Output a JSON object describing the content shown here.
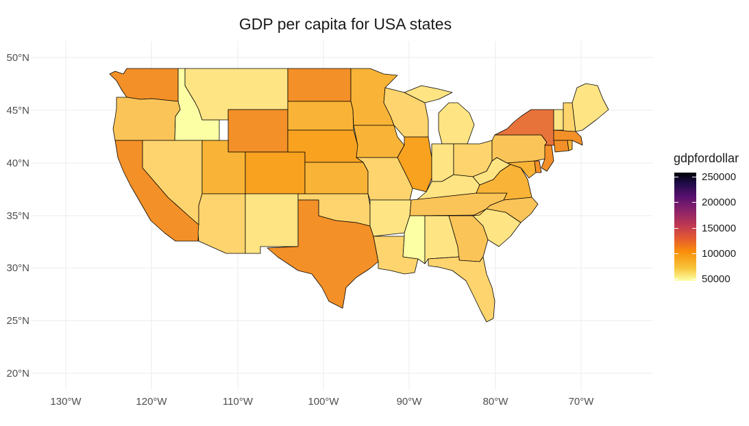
{
  "title": "GDP per capita for USA states",
  "map": {
    "projection": "longitude-latitude",
    "lat_ticks": [
      "50°N",
      "45°N",
      "40°N",
      "35°N",
      "30°N",
      "25°N",
      "20°N"
    ],
    "lon_ticks": [
      "130°W",
      "120°W",
      "110°W",
      "100°W",
      "90°W",
      "80°W",
      "70°W"
    ],
    "fill_variable": "gdpfordollar",
    "colors": {
      "water": "#ffffff",
      "border": "#000000",
      "grid": "#ebebeb",
      "very_low": "#fcffa4",
      "low": "#ffe484",
      "mid_low": "#fdd46d",
      "mid": "#fbc458",
      "mid_high": "#f9b437",
      "high": "#f8a220",
      "very_high": "#f39028",
      "top": "#e8733a"
    },
    "regions": [
      {
        "name": "Washington",
        "color_key": "very_high"
      },
      {
        "name": "Oregon",
        "color_key": "mid"
      },
      {
        "name": "California",
        "color_key": "very_high"
      },
      {
        "name": "Idaho",
        "color_key": "very_low"
      },
      {
        "name": "Nevada",
        "color_key": "mid_low"
      },
      {
        "name": "Montana",
        "color_key": "low"
      },
      {
        "name": "Wyoming",
        "color_key": "very_high"
      },
      {
        "name": "Utah",
        "color_key": "mid_high"
      },
      {
        "name": "Arizona",
        "color_key": "mid_low"
      },
      {
        "name": "Colorado",
        "color_key": "high"
      },
      {
        "name": "New Mexico",
        "color_key": "low"
      },
      {
        "name": "North Dakota",
        "color_key": "very_high"
      },
      {
        "name": "South Dakota",
        "color_key": "mid_high"
      },
      {
        "name": "Nebraska",
        "color_key": "high"
      },
      {
        "name": "Kansas",
        "color_key": "mid_high"
      },
      {
        "name": "Oklahoma",
        "color_key": "mid_low"
      },
      {
        "name": "Texas",
        "color_key": "very_high"
      },
      {
        "name": "Minnesota",
        "color_key": "mid_high"
      },
      {
        "name": "Iowa",
        "color_key": "mid_high"
      },
      {
        "name": "Missouri",
        "color_key": "mid_low"
      },
      {
        "name": "Arkansas",
        "color_key": "low"
      },
      {
        "name": "Louisiana",
        "color_key": "mid_low"
      },
      {
        "name": "Wisconsin",
        "color_key": "mid_low"
      },
      {
        "name": "Illinois",
        "color_key": "high"
      },
      {
        "name": "Michigan",
        "color_key": "low"
      },
      {
        "name": "Indiana",
        "color_key": "low"
      },
      {
        "name": "Ohio",
        "color_key": "mid_low"
      },
      {
        "name": "Kentucky",
        "color_key": "low"
      },
      {
        "name": "Tennessee",
        "color_key": "mid"
      },
      {
        "name": "Mississippi",
        "color_key": "very_low"
      },
      {
        "name": "Alabama",
        "color_key": "low"
      },
      {
        "name": "Georgia",
        "color_key": "mid"
      },
      {
        "name": "Florida",
        "color_key": "mid_low"
      },
      {
        "name": "South Carolina",
        "color_key": "low"
      },
      {
        "name": "North Carolina",
        "color_key": "mid"
      },
      {
        "name": "Virginia",
        "color_key": "mid_high"
      },
      {
        "name": "West Virginia",
        "color_key": "low"
      },
      {
        "name": "Pennsylvania",
        "color_key": "mid"
      },
      {
        "name": "New York",
        "color_key": "top"
      },
      {
        "name": "New Jersey",
        "color_key": "very_high"
      },
      {
        "name": "Delaware",
        "color_key": "very_high"
      },
      {
        "name": "Maryland",
        "color_key": "mid_high"
      },
      {
        "name": "Connecticut",
        "color_key": "very_high"
      },
      {
        "name": "Rhode Island",
        "color_key": "mid_high"
      },
      {
        "name": "Massachusetts",
        "color_key": "very_high"
      },
      {
        "name": "Vermont",
        "color_key": "low"
      },
      {
        "name": "New Hampshire",
        "color_key": "mid_low"
      },
      {
        "name": "Maine",
        "color_key": "low"
      }
    ]
  },
  "legend": {
    "title": "gdpfordollar",
    "labels": [
      "250000",
      "200000",
      "150000",
      "100000",
      "50000"
    ],
    "values": [
      250000,
      200000,
      150000,
      100000,
      50000
    ],
    "range": [
      40000,
      262000
    ]
  }
}
